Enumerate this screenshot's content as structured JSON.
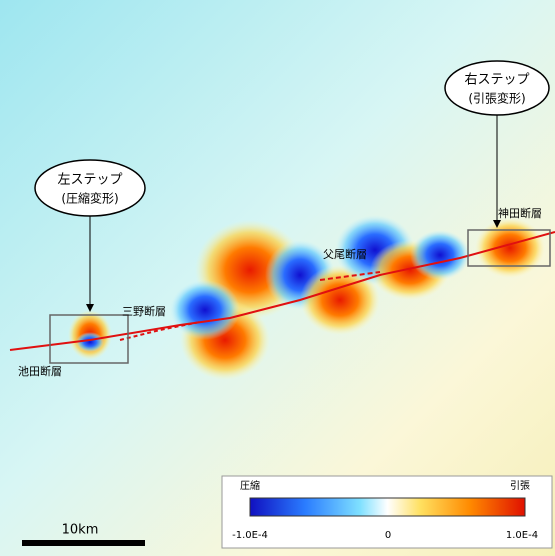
{
  "callouts": [
    {
      "title": "左ステップ",
      "subtitle": "(圧縮変形)"
    },
    {
      "title": "右ステップ",
      "subtitle": "(引張変形)"
    }
  ],
  "fault_labels": [
    "池田断層",
    "三野断層",
    "父尾断層",
    "神田断層"
  ],
  "colorbar": {
    "left_label": "圧縮",
    "right_label": "引張",
    "ticks": [
      "-1.0E-4",
      "0",
      "1.0E-4"
    ]
  },
  "scale_bar": {
    "label": "10km"
  }
}
